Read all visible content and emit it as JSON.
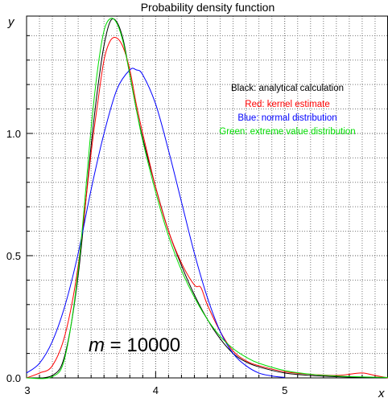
{
  "chart_data": {
    "type": "line",
    "title": "Probability density function",
    "xlabel": "x",
    "ylabel": "y",
    "xlim": [
      3.0,
      5.8
    ],
    "ylim": [
      0.0,
      1.48
    ],
    "x_ticks": [
      3,
      4,
      5
    ],
    "y_ticks": [
      0.0,
      0.5,
      1.0
    ],
    "x_tick_labels": [
      "3",
      "4",
      "5"
    ],
    "y_tick_labels": [
      "0.0",
      "0.5",
      "1.0"
    ],
    "grid": true,
    "legend_placement": "top-right",
    "annotation": {
      "var": "m",
      "text": " = 10000"
    },
    "series": [
      {
        "name": "Black: analytical calculation",
        "color": "#000000",
        "x": [
          3.0,
          3.2,
          3.3,
          3.4,
          3.5,
          3.55,
          3.6,
          3.65,
          3.7,
          3.75,
          3.8,
          3.85,
          3.9,
          4.0,
          4.1,
          4.2,
          4.3,
          4.4,
          4.5,
          4.6,
          4.7,
          4.8,
          5.0,
          5.2,
          5.4,
          5.6,
          5.8
        ],
        "y": [
          0.0,
          0.01,
          0.1,
          0.42,
          0.95,
          1.18,
          1.36,
          1.46,
          1.455,
          1.38,
          1.24,
          1.1,
          0.98,
          0.78,
          0.6,
          0.46,
          0.34,
          0.24,
          0.16,
          0.1,
          0.065,
          0.045,
          0.02,
          0.01,
          0.005,
          0.002,
          0.001
        ]
      },
      {
        "name": "Red: kernel estimate",
        "color": "#ff0000",
        "x": [
          3.0,
          3.1,
          3.2,
          3.3,
          3.4,
          3.5,
          3.55,
          3.6,
          3.65,
          3.7,
          3.75,
          3.8,
          3.85,
          3.9,
          4.0,
          4.1,
          4.2,
          4.3,
          4.35,
          4.4,
          4.5,
          4.6,
          4.7,
          4.8,
          5.0,
          5.2,
          5.4,
          5.5,
          5.6,
          5.7,
          5.8
        ],
        "y": [
          0.0,
          0.02,
          0.05,
          0.18,
          0.46,
          0.92,
          1.12,
          1.3,
          1.38,
          1.39,
          1.35,
          1.26,
          1.12,
          1.0,
          0.78,
          0.6,
          0.47,
          0.38,
          0.37,
          0.3,
          0.19,
          0.11,
          0.07,
          0.05,
          0.025,
          0.015,
          0.01,
          0.015,
          0.02,
          0.01,
          0.0
        ]
      },
      {
        "name": "Blue: normal distribution",
        "color": "#0000ff",
        "x": [
          3.0,
          3.1,
          3.2,
          3.3,
          3.4,
          3.5,
          3.6,
          3.7,
          3.8,
          3.85,
          3.9,
          4.0,
          4.1,
          4.2,
          4.3,
          4.4,
          4.5,
          4.6,
          4.7,
          4.8,
          4.9,
          5.0
        ],
        "y": [
          0.02,
          0.06,
          0.15,
          0.3,
          0.51,
          0.77,
          1.0,
          1.18,
          1.26,
          1.26,
          1.24,
          1.12,
          0.93,
          0.72,
          0.51,
          0.33,
          0.19,
          0.1,
          0.05,
          0.02,
          0.008,
          0.002
        ]
      },
      {
        "name": "Green: extreme value distribution",
        "color": "#00dd00",
        "x": [
          3.0,
          3.2,
          3.3,
          3.4,
          3.5,
          3.55,
          3.6,
          3.65,
          3.7,
          3.75,
          3.8,
          3.85,
          3.9,
          4.0,
          4.1,
          4.2,
          4.3,
          4.4,
          4.5,
          4.6,
          4.7,
          4.8,
          5.0,
          5.2,
          5.4,
          5.6,
          5.8
        ],
        "y": [
          0.0,
          0.005,
          0.09,
          0.44,
          1.02,
          1.26,
          1.42,
          1.47,
          1.45,
          1.37,
          1.24,
          1.1,
          0.97,
          0.76,
          0.58,
          0.44,
          0.33,
          0.24,
          0.17,
          0.12,
          0.085,
          0.06,
          0.03,
          0.015,
          0.008,
          0.004,
          0.002
        ]
      }
    ]
  }
}
